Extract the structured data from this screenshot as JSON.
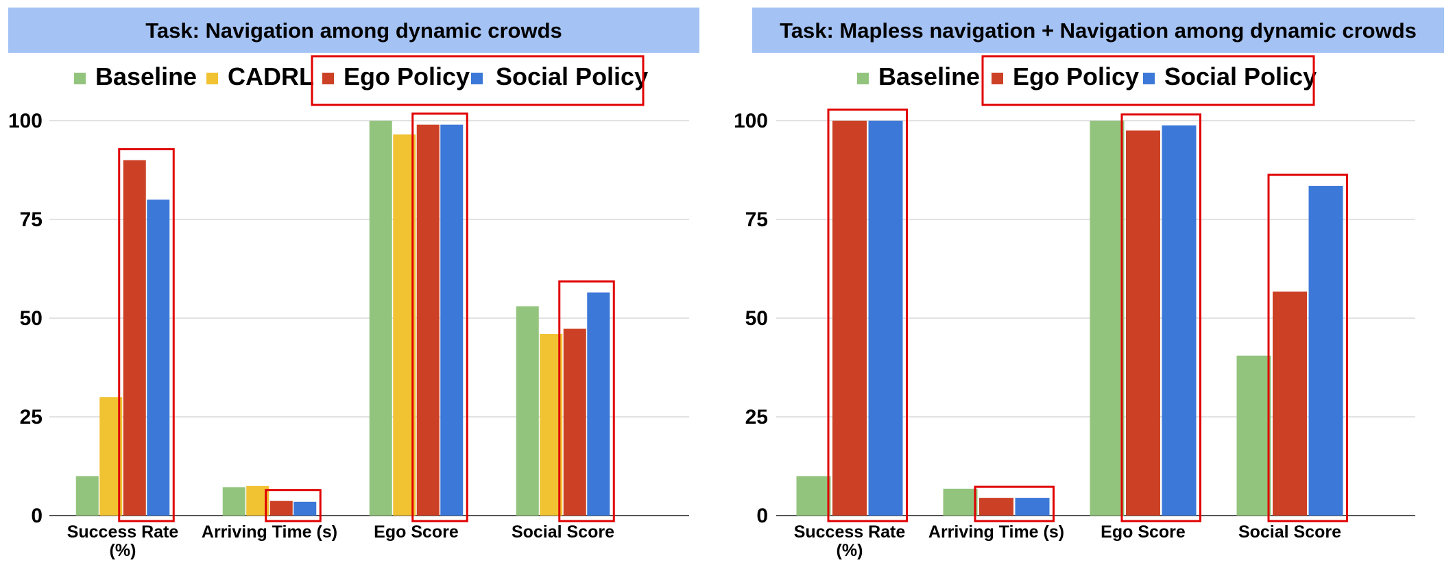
{
  "colors": {
    "baseline": "#93c47d",
    "cadrl": "#f1c232",
    "ego_policy": "#cc4125",
    "social_policy": "#3c78d8",
    "title_band": "#a4c2f4",
    "highlight_box": "#e00000",
    "gridline": "#d0d0d0",
    "axis": "#555555"
  },
  "chart_data": [
    {
      "type": "bar",
      "title": "Task: Navigation among dynamic crowds",
      "xlabel": "",
      "ylabel": "",
      "ylim": [
        0,
        100
      ],
      "yticks": [
        "0",
        "25",
        "50",
        "75",
        "100"
      ],
      "grid": true,
      "legend": "top-center",
      "categories": [
        "Success Rate (%)",
        "Arriving Time (s)",
        "Ego Score",
        "Social Score"
      ],
      "series": [
        {
          "name": "Baseline",
          "color_key": "baseline",
          "values": [
            10,
            7.2,
            100,
            53
          ]
        },
        {
          "name": "CADRL",
          "color_key": "cadrl",
          "values": [
            30,
            7.5,
            96.5,
            46
          ]
        },
        {
          "name": "Ego Policy",
          "color_key": "ego_policy",
          "values": [
            90,
            3.7,
            99,
            47.3
          ]
        },
        {
          "name": "Social Policy",
          "color_key": "social_policy",
          "values": [
            80,
            3.5,
            99,
            56.5
          ]
        }
      ],
      "highlighted_series": [
        "Ego Policy",
        "Social Policy"
      ]
    },
    {
      "type": "bar",
      "title": "Task: Mapless navigation + Navigation among dynamic crowds",
      "xlabel": "",
      "ylabel": "",
      "ylim": [
        0,
        100
      ],
      "yticks": [
        "0",
        "25",
        "50",
        "75",
        "100"
      ],
      "grid": true,
      "legend": "top-center",
      "categories": [
        "Success Rate (%)",
        "Arriving Time (s)",
        "Ego Score",
        "Social Score"
      ],
      "series": [
        {
          "name": "Baseline",
          "color_key": "baseline",
          "values": [
            10,
            6.8,
            100,
            40.5
          ]
        },
        {
          "name": "Ego Policy",
          "color_key": "ego_policy",
          "values": [
            100,
            4.5,
            97.5,
            56.7
          ]
        },
        {
          "name": "Social Policy",
          "color_key": "social_policy",
          "values": [
            100,
            4.5,
            98.8,
            83.5
          ]
        }
      ],
      "highlighted_series": [
        "Ego Policy",
        "Social Policy"
      ]
    }
  ]
}
